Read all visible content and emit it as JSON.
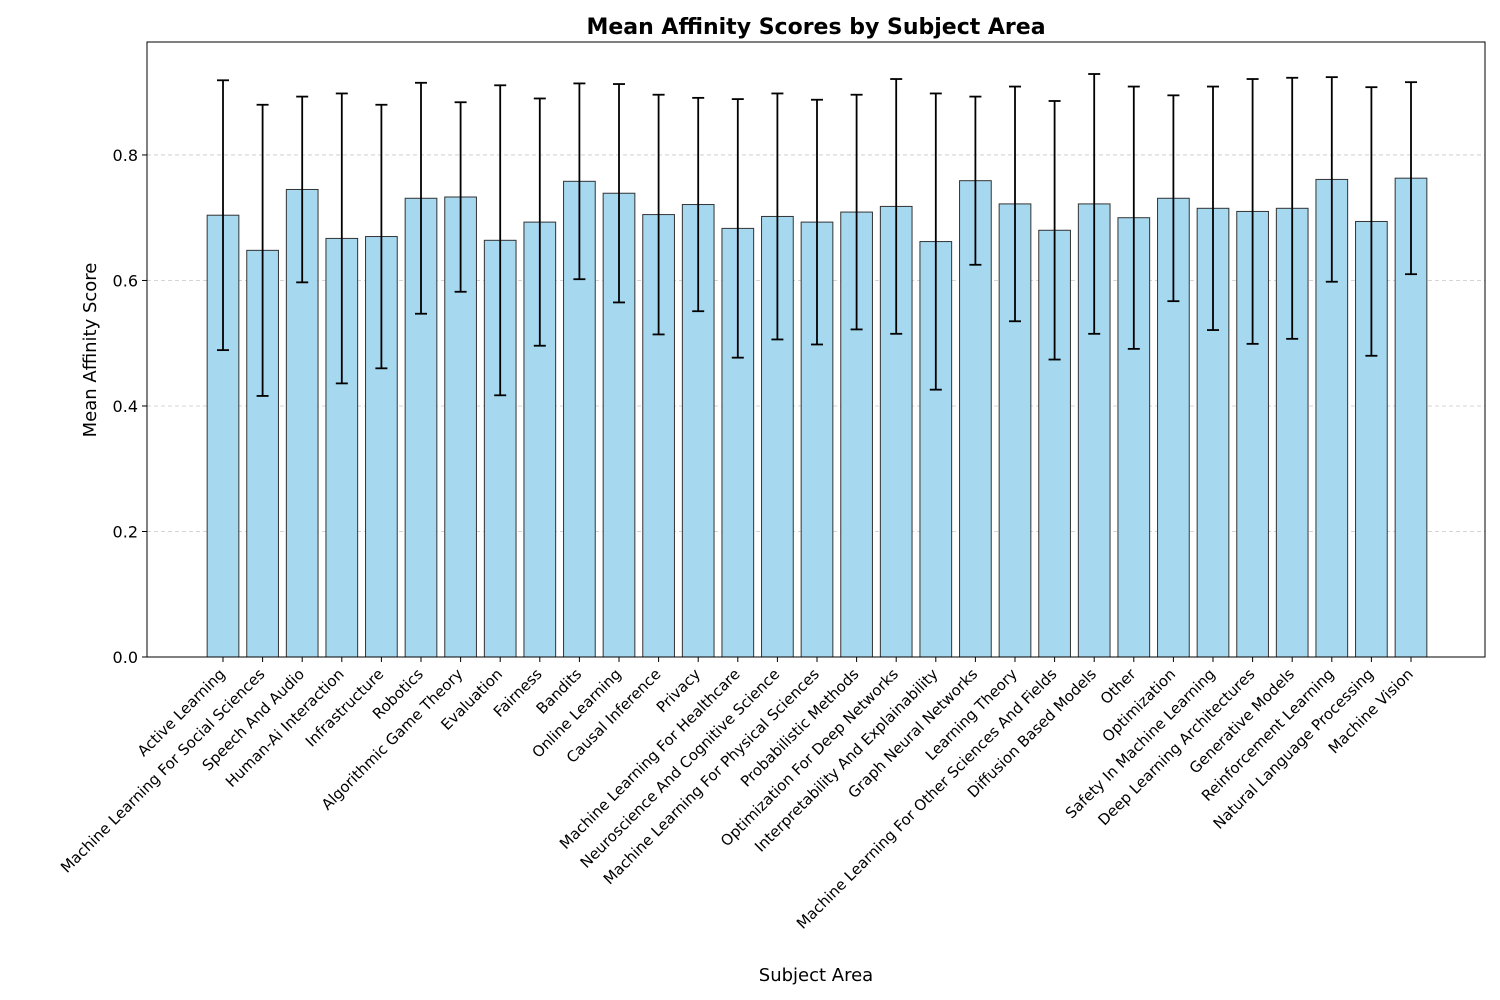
{
  "chart_data": {
    "type": "bar",
    "title": "Mean Affinity Scores by Subject Area",
    "xlabel": "Subject Area",
    "ylabel": "Mean Affinity Score",
    "ylim": [
      0,
      0.98
    ],
    "yticks": [
      "0.0",
      "0.2",
      "0.4",
      "0.6",
      "0.8"
    ],
    "grid": "horizontal dashed",
    "bar_color": "#a6d9f0",
    "bar_edge_color": "#333333",
    "error_color": "#000000",
    "categories": [
      "Active Learning",
      "Machine Learning For Social Sciences",
      "Speech And Audio",
      "Human-Ai Interaction",
      "Infrastructure",
      "Robotics",
      "Algorithmic Game Theory",
      "Evaluation",
      "Fairness",
      "Bandits",
      "Online Learning",
      "Causal Inference",
      "Privacy",
      "Machine Learning For Healthcare",
      "Neuroscience And Cognitive Science",
      "Machine Learning For Physical Sciences",
      "Probabilistic Methods",
      "Optimization For Deep Networks",
      "Interpretability And Explainability",
      "Graph Neural Networks",
      "Learning Theory",
      "Machine Learning For Other Sciences And Fields",
      "Diffusion Based Models",
      "Other",
      "Optimization",
      "Safety In Machine Learning",
      "Deep Learning Architectures",
      "Generative Models",
      "Reinforcement Learning",
      "Natural Language Processing",
      "Machine Vision"
    ],
    "values": [
      0.704,
      0.648,
      0.745,
      0.667,
      0.67,
      0.731,
      0.733,
      0.664,
      0.693,
      0.758,
      0.739,
      0.705,
      0.721,
      0.683,
      0.702,
      0.693,
      0.709,
      0.718,
      0.662,
      0.759,
      0.722,
      0.68,
      0.722,
      0.7,
      0.731,
      0.715,
      0.71,
      0.715,
      0.761,
      0.694,
      0.763
    ],
    "errors": [
      0.215,
      0.232,
      0.148,
      0.231,
      0.21,
      0.184,
      0.151,
      0.247,
      0.197,
      0.156,
      0.174,
      0.191,
      0.17,
      0.206,
      0.196,
      0.195,
      0.187,
      0.203,
      0.236,
      0.134,
      0.187,
      0.206,
      0.207,
      0.209,
      0.164,
      0.194,
      0.211,
      0.208,
      0.163,
      0.214,
      0.153
    ]
  }
}
